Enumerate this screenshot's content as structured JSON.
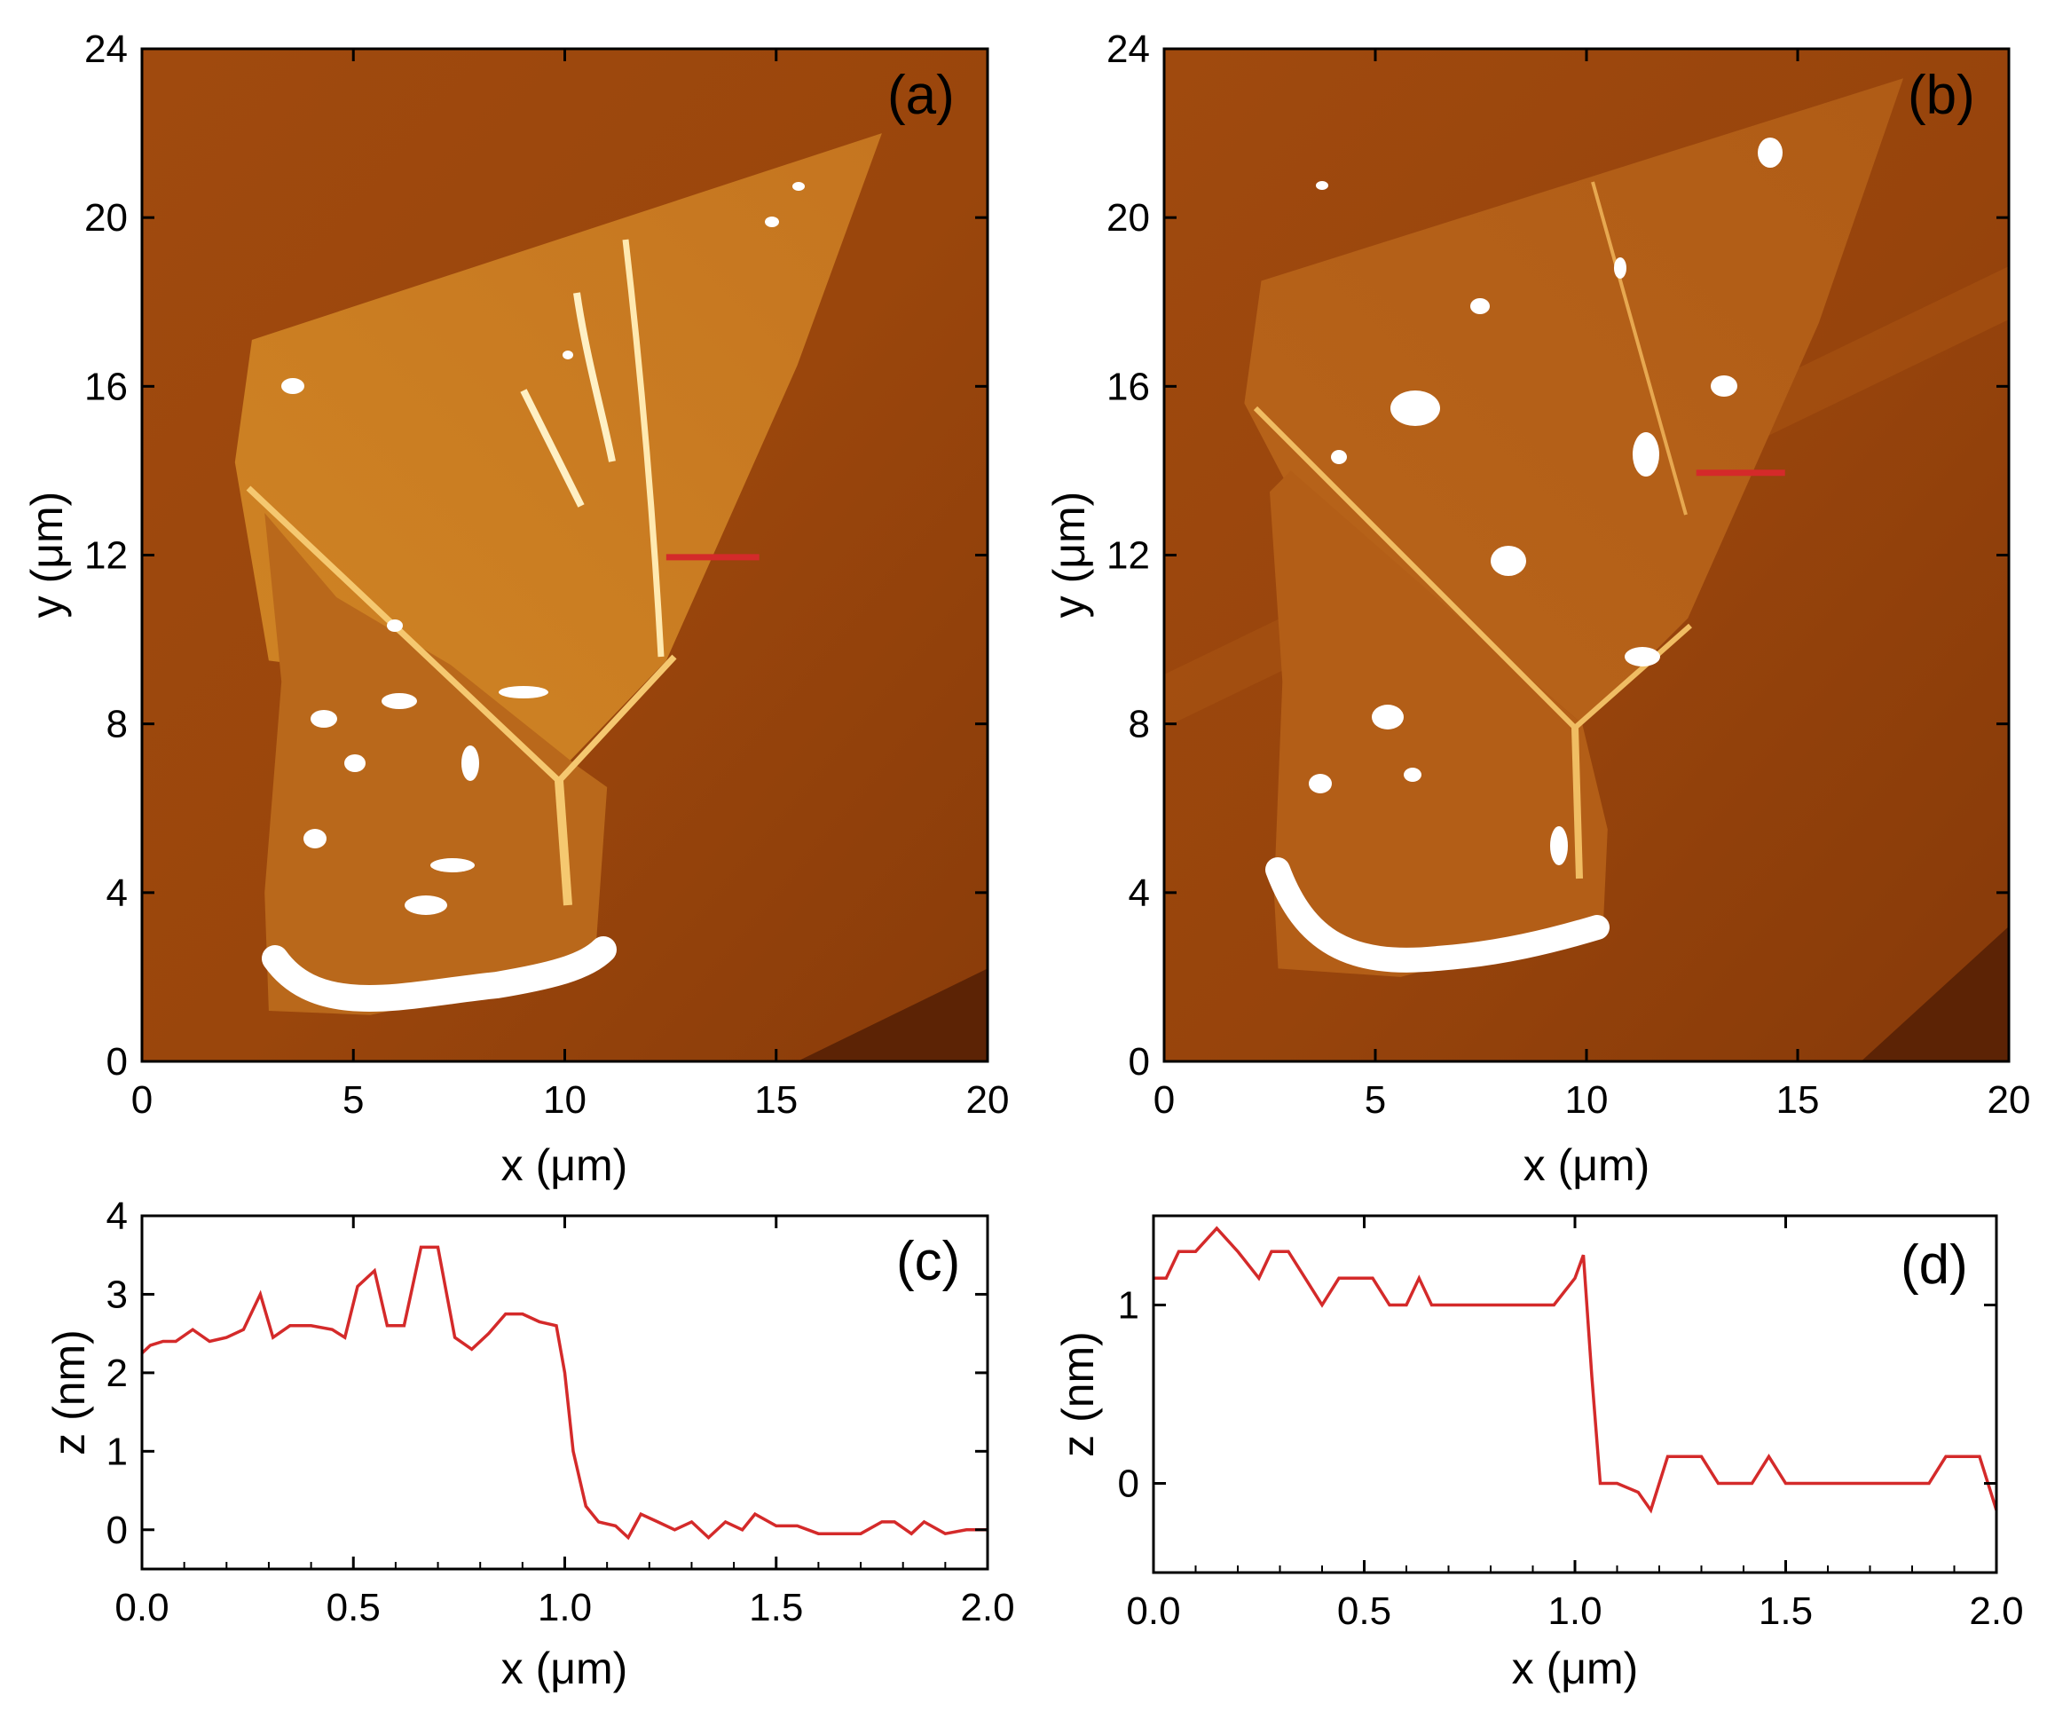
{
  "figure": {
    "colors": {
      "afm_dark": "#6b2a06",
      "afm_mid": "#a64d0f",
      "afm_flake": "#c97a1e",
      "afm_bright": "#ffffff",
      "profile_line": "#d42a2a",
      "axes": "#000000"
    },
    "maps": [
      {
        "id": "a",
        "label": "(a)",
        "xlabel": "x (μm)",
        "ylabel": "y (μm)",
        "xlim": [
          0,
          20
        ],
        "ylim": [
          0,
          24
        ],
        "xticks": [
          0,
          5,
          10,
          15,
          20
        ],
        "yticks": [
          0,
          4,
          8,
          12,
          16,
          20,
          24
        ],
        "xtick_labels": [
          "0",
          "5",
          "10",
          "15",
          "20"
        ],
        "ytick_labels": [
          "0",
          "4",
          "8",
          "12",
          "16",
          "20",
          "24"
        ],
        "upper_flake": [
          [
            2.2,
            14.2
          ],
          [
            2.6,
            17.1
          ],
          [
            17.5,
            22.0
          ],
          [
            15.5,
            16.5
          ],
          [
            12.4,
            9.5
          ],
          [
            10.0,
            7.0
          ],
          [
            7.0,
            9.0
          ],
          [
            3.0,
            9.5
          ]
        ],
        "lower_flake": [
          [
            2.9,
            13.0
          ],
          [
            3.3,
            9.0
          ],
          [
            2.9,
            4.0
          ],
          [
            3.0,
            1.2
          ],
          [
            5.4,
            1.1
          ],
          [
            10.7,
            2.2
          ],
          [
            11.0,
            6.5
          ],
          [
            10.3,
            7.0
          ],
          [
            7.3,
            9.4
          ],
          [
            4.6,
            11.0
          ]
        ],
        "dark_corner": [
          [
            15.5,
            0
          ],
          [
            20,
            2.2
          ],
          [
            20,
            0
          ]
        ],
        "profile_segment": [
          [
            12.4,
            11.95
          ],
          [
            14.6,
            11.95
          ]
        ]
      },
      {
        "id": "b",
        "label": "(b)",
        "xlabel": "x (μm)",
        "ylabel": "y (μm)",
        "xlim": [
          0,
          20
        ],
        "ylim": [
          0,
          24
        ],
        "xticks": [
          0,
          5,
          10,
          15,
          20
        ],
        "yticks": [
          0,
          4,
          8,
          12,
          16,
          20,
          24
        ],
        "xtick_labels": [
          "0",
          "5",
          "10",
          "15",
          "20"
        ],
        "ytick_labels": [
          "0",
          "4",
          "8",
          "12",
          "16",
          "20",
          "24"
        ],
        "upper_flake": [
          [
            1.9,
            15.6
          ],
          [
            2.3,
            18.5
          ],
          [
            17.5,
            23.3
          ],
          [
            15.5,
            17.5
          ],
          [
            12.4,
            10.5
          ],
          [
            9.9,
            8.0
          ],
          [
            7.0,
            10.5
          ],
          [
            3.0,
            13.5
          ]
        ],
        "lower_flake": [
          [
            2.5,
            13.5
          ],
          [
            2.8,
            9.0
          ],
          [
            2.6,
            4.0
          ],
          [
            2.7,
            2.2
          ],
          [
            5.6,
            2.0
          ],
          [
            10.4,
            3.3
          ],
          [
            10.5,
            5.5
          ],
          [
            9.9,
            8.0
          ],
          [
            7.0,
            10.5
          ],
          [
            3.0,
            14.0
          ]
        ],
        "dark_corner": [
          [
            16.5,
            0
          ],
          [
            20,
            3.2
          ],
          [
            20,
            0
          ]
        ],
        "profile_segment": [
          [
            12.6,
            13.95
          ],
          [
            14.7,
            13.95
          ]
        ]
      }
    ],
    "profiles": [
      {
        "id": "c",
        "label": "(c)",
        "type": "line",
        "xlabel": "x (μm)",
        "ylabel": "z (nm)",
        "xlim": [
          0,
          2
        ],
        "ylim": [
          -0.5,
          4
        ],
        "xticks": [
          0,
          0.5,
          1.0,
          1.5,
          2.0
        ],
        "xtick_labels": [
          "0.0",
          "0.5",
          "1.0",
          "1.5",
          "2.0"
        ],
        "yticks": [
          0,
          1,
          2,
          3,
          4
        ],
        "ytick_labels": [
          "0",
          "1",
          "2",
          "3",
          "4"
        ],
        "x": [
          0.0,
          0.02,
          0.05,
          0.08,
          0.12,
          0.16,
          0.2,
          0.24,
          0.28,
          0.31,
          0.35,
          0.4,
          0.45,
          0.48,
          0.51,
          0.55,
          0.58,
          0.62,
          0.66,
          0.7,
          0.74,
          0.78,
          0.82,
          0.86,
          0.9,
          0.94,
          0.98,
          1.0,
          1.02,
          1.05,
          1.08,
          1.12,
          1.15,
          1.18,
          1.22,
          1.26,
          1.3,
          1.34,
          1.38,
          1.42,
          1.45,
          1.5,
          1.55,
          1.6,
          1.65,
          1.7,
          1.75,
          1.78,
          1.82,
          1.85,
          1.9,
          1.95,
          2.0
        ],
        "y": [
          2.25,
          2.35,
          2.4,
          2.4,
          2.55,
          2.4,
          2.45,
          2.55,
          3.0,
          2.45,
          2.6,
          2.6,
          2.55,
          2.45,
          3.1,
          3.3,
          2.6,
          2.6,
          3.6,
          3.6,
          2.45,
          2.3,
          2.5,
          2.75,
          2.75,
          2.65,
          2.6,
          2.0,
          1.0,
          0.3,
          0.1,
          0.05,
          -0.1,
          0.2,
          0.1,
          0.0,
          0.1,
          -0.1,
          0.1,
          0.0,
          0.2,
          0.05,
          0.05,
          -0.05,
          -0.05,
          -0.05,
          0.1,
          0.1,
          -0.05,
          0.1,
          -0.05,
          0.0,
          0.0
        ]
      },
      {
        "id": "d",
        "label": "(d)",
        "type": "line",
        "xlabel": "x (μm)",
        "ylabel": "z (nm)",
        "xlim": [
          0,
          2
        ],
        "ylim": [
          -0.5,
          1.5
        ],
        "xticks": [
          0,
          0.5,
          1.0,
          1.5,
          2.0
        ],
        "xtick_labels": [
          "0.0",
          "0.5",
          "1.0",
          "1.5",
          "2.0"
        ],
        "yticks": [
          0,
          1
        ],
        "ytick_labels": [
          "0",
          "1"
        ],
        "x": [
          0.0,
          0.03,
          0.06,
          0.1,
          0.15,
          0.2,
          0.25,
          0.28,
          0.32,
          0.36,
          0.4,
          0.44,
          0.48,
          0.52,
          0.56,
          0.6,
          0.63,
          0.66,
          0.7,
          0.75,
          0.8,
          0.85,
          0.9,
          0.95,
          1.0,
          1.02,
          1.04,
          1.06,
          1.1,
          1.15,
          1.18,
          1.22,
          1.26,
          1.3,
          1.34,
          1.38,
          1.42,
          1.46,
          1.5,
          1.55,
          1.6,
          1.65,
          1.7,
          1.75,
          1.8,
          1.84,
          1.88,
          1.92,
          1.96,
          2.0
        ],
        "y": [
          1.15,
          1.15,
          1.3,
          1.3,
          1.43,
          1.3,
          1.15,
          1.3,
          1.3,
          1.15,
          1.0,
          1.15,
          1.15,
          1.15,
          1.0,
          1.0,
          1.15,
          1.0,
          1.0,
          1.0,
          1.0,
          1.0,
          1.0,
          1.0,
          1.15,
          1.28,
          0.6,
          0.0,
          0.0,
          -0.05,
          -0.15,
          0.15,
          0.15,
          0.15,
          0.0,
          0.0,
          0.0,
          0.15,
          0.0,
          0.0,
          0.0,
          0.0,
          0.0,
          0.0,
          0.0,
          0.0,
          0.15,
          0.15,
          0.15,
          -0.15
        ]
      }
    ]
  }
}
